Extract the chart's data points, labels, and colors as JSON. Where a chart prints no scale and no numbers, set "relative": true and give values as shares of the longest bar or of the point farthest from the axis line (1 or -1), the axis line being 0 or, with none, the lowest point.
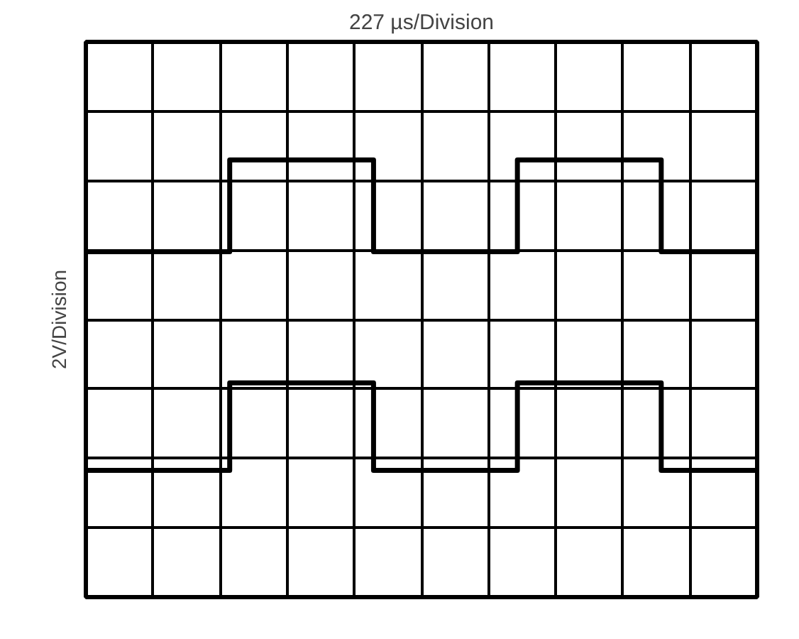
{
  "chart_data": {
    "type": "step",
    "title": "227 µs/Division",
    "ylabel": "2V/Division",
    "relative": true,
    "grid": true,
    "marker": "none",
    "line_style": "solid",
    "categories": [
      null,
      null,
      null,
      null,
      null,
      null,
      null,
      null,
      null,
      null,
      null,
      null,
      null,
      null,
      null
    ],
    "series": [
      {
        "color": "#000000",
        "values": [
          0.79,
          0.79,
          0.79,
          1,
          1,
          1,
          0.79,
          0.79,
          0.79,
          1,
          1,
          1,
          0.79,
          0.79,
          0.79
        ]
      },
      {
        "color": "#000000",
        "values": [
          0.29,
          0.29,
          0.29,
          0.49,
          0.49,
          0.49,
          0.29,
          0.29,
          0.29,
          0.49,
          0.49,
          0.49,
          0.29,
          0.29,
          0.29
        ]
      }
    ]
  }
}
